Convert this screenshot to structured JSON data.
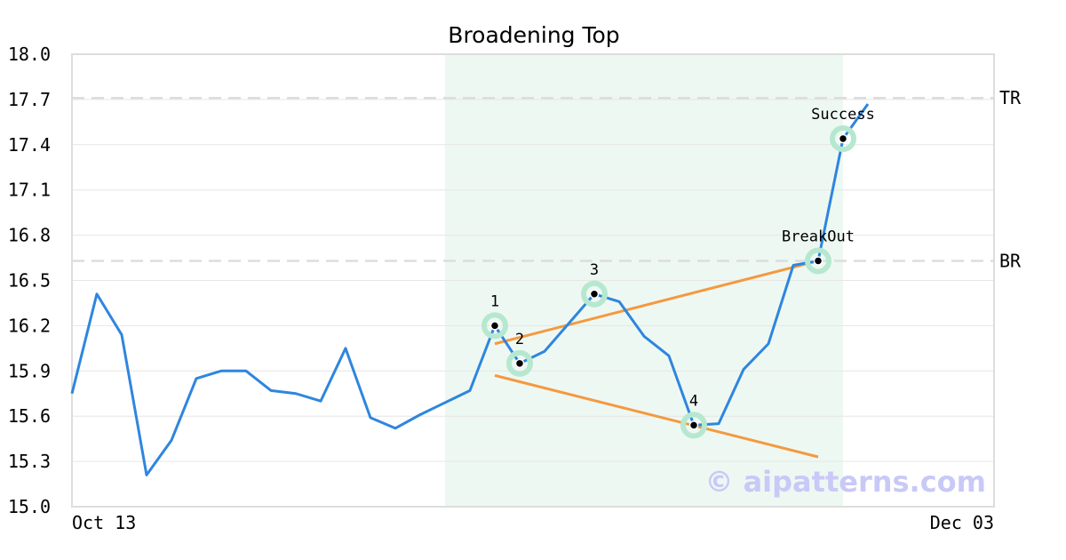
{
  "chart_data": {
    "type": "line",
    "title": "Broadening Top",
    "xlabel": "",
    "ylabel": "",
    "x_tick_labels": [
      "Oct 13",
      "Dec 03"
    ],
    "ylim": [
      15.0,
      18.0
    ],
    "y_ticks": [
      "15.0",
      "15.3",
      "15.6",
      "15.9",
      "16.2",
      "16.5",
      "16.8",
      "17.1",
      "17.4",
      "17.7",
      "18.0"
    ],
    "grid": true,
    "legend": "none",
    "series": [
      {
        "color": "#2e86de",
        "values": [
          15.75,
          16.41,
          16.14,
          15.21,
          15.44,
          15.85,
          15.9,
          15.9,
          15.77,
          15.75,
          15.7,
          16.05,
          15.59,
          15.52,
          15.61,
          15.69,
          15.77,
          16.2,
          15.95,
          16.03,
          16.22,
          16.41,
          16.36,
          16.13,
          16.0,
          15.54,
          15.55,
          15.91,
          16.08,
          16.6,
          16.63,
          17.44,
          17.67
        ]
      }
    ],
    "highlight_region": {
      "from_index": 15,
      "to_index": 31,
      "color": "#eef8f3"
    },
    "levels": [
      {
        "label": "TR",
        "value": 17.71
      },
      {
        "label": "BR",
        "value": 16.63
      }
    ],
    "trendlines": [
      {
        "from": [
          17,
          16.08
        ],
        "to": [
          30,
          16.63
        ],
        "color": "#f5993f"
      },
      {
        "from": [
          17,
          15.87
        ],
        "to": [
          30,
          15.33
        ],
        "color": "#f5993f"
      }
    ],
    "points": [
      {
        "label": "1",
        "index": 17,
        "value": 16.2
      },
      {
        "label": "2",
        "index": 18,
        "value": 15.95
      },
      {
        "label": "3",
        "index": 21,
        "value": 16.41
      },
      {
        "label": "4",
        "index": 25,
        "value": 15.54
      },
      {
        "label": "BreakOut",
        "index": 30,
        "value": 16.63
      },
      {
        "label": "Success",
        "index": 31,
        "value": 17.44
      }
    ],
    "watermark": "© aipatterns.com"
  }
}
